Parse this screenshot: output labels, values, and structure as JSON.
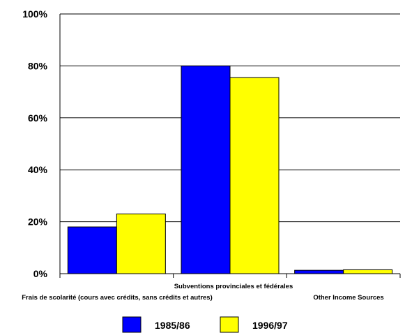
{
  "chart_data": {
    "type": "bar",
    "title": "",
    "xlabel": "",
    "ylabel": "",
    "ylim": [
      0,
      100
    ],
    "y_ticks": [
      "0%",
      "20%",
      "40%",
      "60%",
      "80%",
      "100%"
    ],
    "y_tick_values": [
      0,
      20,
      40,
      60,
      80,
      100
    ],
    "grid": true,
    "legend_position": "bottom",
    "categories": [
      "Frais de scolarité (cours avec crédits, sans crédits et autres)",
      "Subventions provinciales et fédérales",
      "Other Income Sources"
    ],
    "series": [
      {
        "name": "1985/86",
        "color": "#0000ff",
        "values": [
          18,
          80,
          1.3
        ]
      },
      {
        "name": "1996/97",
        "color": "#ffff00",
        "values": [
          23,
          75.5,
          1.5
        ]
      }
    ]
  }
}
